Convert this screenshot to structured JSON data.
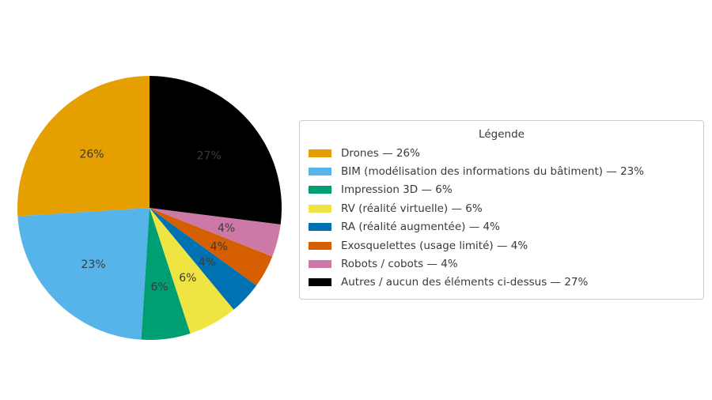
{
  "chart_data": {
    "type": "pie",
    "legend_title": "Légende",
    "start_angle_deg": 90,
    "counterclockwise": true,
    "pct_label_distance": 0.6,
    "pct_label_color": "#3a3a3a",
    "legend_border_color": "#cccccc",
    "background_color": "#ffffff",
    "slices": [
      {
        "label": "Drones",
        "value": 26,
        "pct_label": "26%",
        "legend_label": "Drones — 26%",
        "color": "#E69F00"
      },
      {
        "label": "BIM (modélisation des informations du bâtiment)",
        "value": 23,
        "pct_label": "23%",
        "legend_label": "BIM (modélisation des informations du bâtiment) — 23%",
        "color": "#56B4E9"
      },
      {
        "label": "Impression 3D",
        "value": 6,
        "pct_label": "6%",
        "legend_label": "Impression 3D — 6%",
        "color": "#009E73"
      },
      {
        "label": "RV (réalité virtuelle)",
        "value": 6,
        "pct_label": "6%",
        "legend_label": "RV (réalité virtuelle) — 6%",
        "color": "#F0E442"
      },
      {
        "label": "RA (réalité augmentée)",
        "value": 4,
        "pct_label": "4%",
        "legend_label": "RA (réalité augmentée) — 4%",
        "color": "#0072B2"
      },
      {
        "label": "Exosquelettes (usage limité)",
        "value": 4,
        "pct_label": "4%",
        "legend_label": "Exosquelettes (usage limité) — 4%",
        "color": "#D55E00"
      },
      {
        "label": "Robots / cobots",
        "value": 4,
        "pct_label": "4%",
        "legend_label": "Robots / cobots — 4%",
        "color": "#CC79A7"
      },
      {
        "label": "Autres / aucun des éléments ci-dessus",
        "value": 27,
        "pct_label": "27%",
        "legend_label": "Autres / aucun des éléments ci-dessus — 27%",
        "color": "#000000"
      }
    ]
  }
}
